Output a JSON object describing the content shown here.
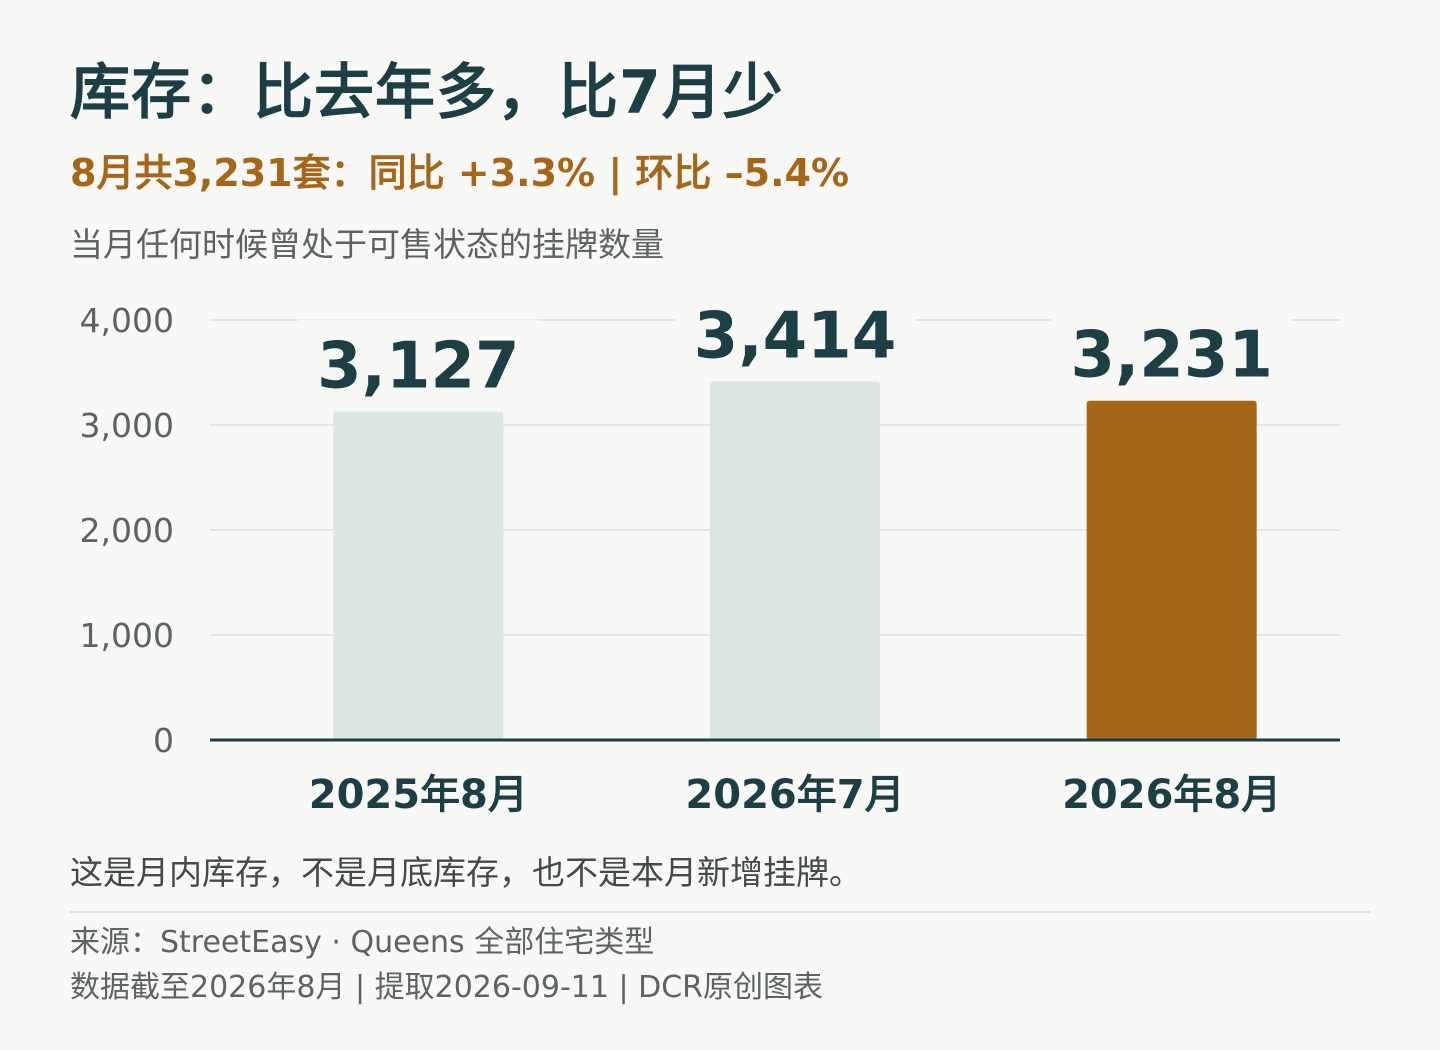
{
  "header": {
    "title": "库存：比去年多，比7月少",
    "subtitle": "8月共3,231套：同比 +3.3% | 环比 –5.4%",
    "description": "当月任何时候曾处于可售状态的挂牌数量"
  },
  "chart_data": {
    "type": "bar",
    "categories": [
      "2025年8月",
      "2026年7月",
      "2026年8月"
    ],
    "values": [
      3127,
      3414,
      3231
    ],
    "value_labels": [
      "3,127",
      "3,414",
      "3,231"
    ],
    "highlight_index": 2,
    "ylim": [
      0,
      4000
    ],
    "y_ticks": [
      0,
      1000,
      2000,
      3000,
      4000
    ],
    "y_tick_labels": [
      "0",
      "1,000",
      "2,000",
      "3,000",
      "4,000"
    ],
    "grid": true,
    "colors": {
      "bar": "#dce6e1",
      "highlight": "#a6661a",
      "value_label": "#1c3e44",
      "axis": "#1c3e44",
      "grid": "#dcdfdd",
      "tick_label": "#5d6364",
      "category_label": "#1c3e44"
    }
  },
  "footer": {
    "note": "这是月内库存，不是月底库存，也不是本月新增挂牌。",
    "source": "来源：StreetEasy · Queens 全部住宅类型",
    "dateline": "数据截至2026年8月 | 提取2026-09-11 | DCR原创图表"
  }
}
